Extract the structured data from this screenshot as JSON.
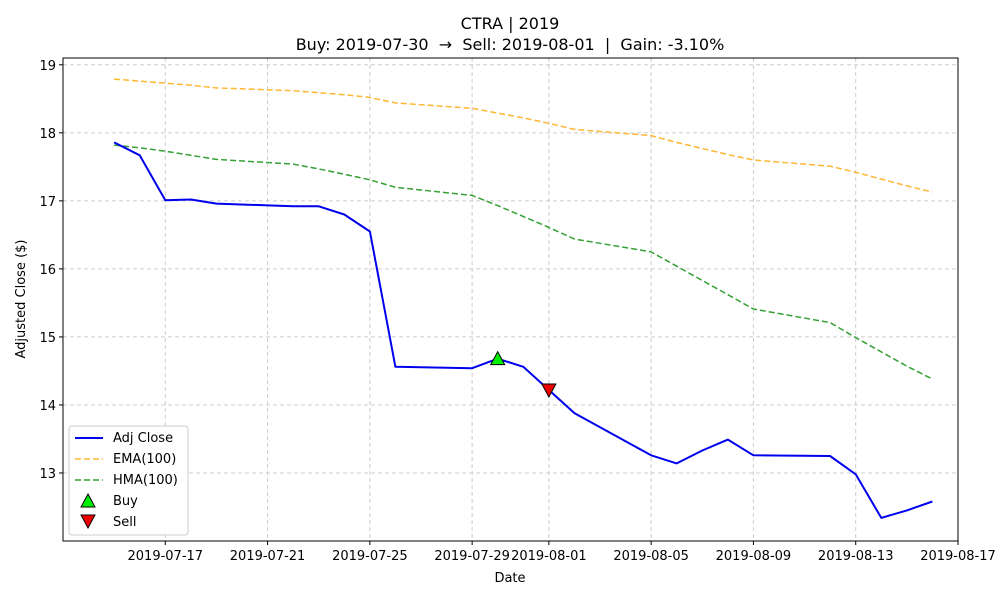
{
  "chart_data": {
    "type": "line",
    "title": "CTRA | 2019",
    "subtitle": "Buy: 2019-07-30  →  Sell: 2019-08-01  |  Gain: -3.10%",
    "xlabel": "Date",
    "ylabel": "Adjusted Close ($)",
    "xlim": [
      "2019-07-13",
      "2019-08-17"
    ],
    "ylim": [
      12.0,
      19.1
    ],
    "x_ticks": [
      "2019-07-17",
      "2019-07-21",
      "2019-07-25",
      "2019-07-29",
      "2019-08-01",
      "2019-08-05",
      "2019-08-09",
      "2019-08-13",
      "2019-08-17"
    ],
    "y_ticks": [
      13,
      14,
      15,
      16,
      17,
      18,
      19
    ],
    "grid": true,
    "legend_position": "lower-left",
    "x": [
      "2019-07-15",
      "2019-07-16",
      "2019-07-17",
      "2019-07-18",
      "2019-07-19",
      "2019-07-22",
      "2019-07-23",
      "2019-07-24",
      "2019-07-25",
      "2019-07-26",
      "2019-07-29",
      "2019-07-30",
      "2019-07-31",
      "2019-08-01",
      "2019-08-02",
      "2019-08-05",
      "2019-08-06",
      "2019-08-07",
      "2019-08-08",
      "2019-08-09",
      "2019-08-12",
      "2019-08-13",
      "2019-08-14",
      "2019-08-15",
      "2019-08-16"
    ],
    "series": [
      {
        "name": "Adj Close",
        "color": "#0000ee",
        "style": "solid",
        "values": [
          17.86,
          17.67,
          17.01,
          17.02,
          16.96,
          16.92,
          16.92,
          16.8,
          16.55,
          14.56,
          14.54,
          14.68,
          14.56,
          14.22,
          13.88,
          13.26,
          13.14,
          13.33,
          13.49,
          13.26,
          13.25,
          12.98,
          12.34,
          12.45,
          12.58
        ]
      },
      {
        "name": "EMA(100)",
        "color": "#ffb733",
        "style": "dashed",
        "values": [
          18.79,
          18.76,
          18.73,
          18.7,
          18.66,
          18.62,
          18.59,
          18.56,
          18.52,
          18.44,
          18.36,
          18.29,
          18.22,
          18.14,
          18.05,
          17.96,
          17.86,
          17.77,
          17.68,
          17.6,
          17.51,
          17.42,
          17.32,
          17.22,
          17.13
        ]
      },
      {
        "name": "HMA(100)",
        "color": "#33a033",
        "style": "dashed",
        "values": [
          17.82,
          17.78,
          17.73,
          17.67,
          17.61,
          17.54,
          17.47,
          17.39,
          17.31,
          17.2,
          17.08,
          16.93,
          16.77,
          16.61,
          16.44,
          16.25,
          16.04,
          15.83,
          15.62,
          15.41,
          15.21,
          14.99,
          14.78,
          14.57,
          14.38
        ]
      }
    ],
    "markers": [
      {
        "name": "Buy",
        "date": "2019-07-30",
        "value": 14.68,
        "color": "#00ee00",
        "symbol": "triangle-up"
      },
      {
        "name": "Sell",
        "date": "2019-08-01",
        "value": 14.22,
        "color": "#ee0000",
        "symbol": "triangle-down"
      }
    ]
  }
}
